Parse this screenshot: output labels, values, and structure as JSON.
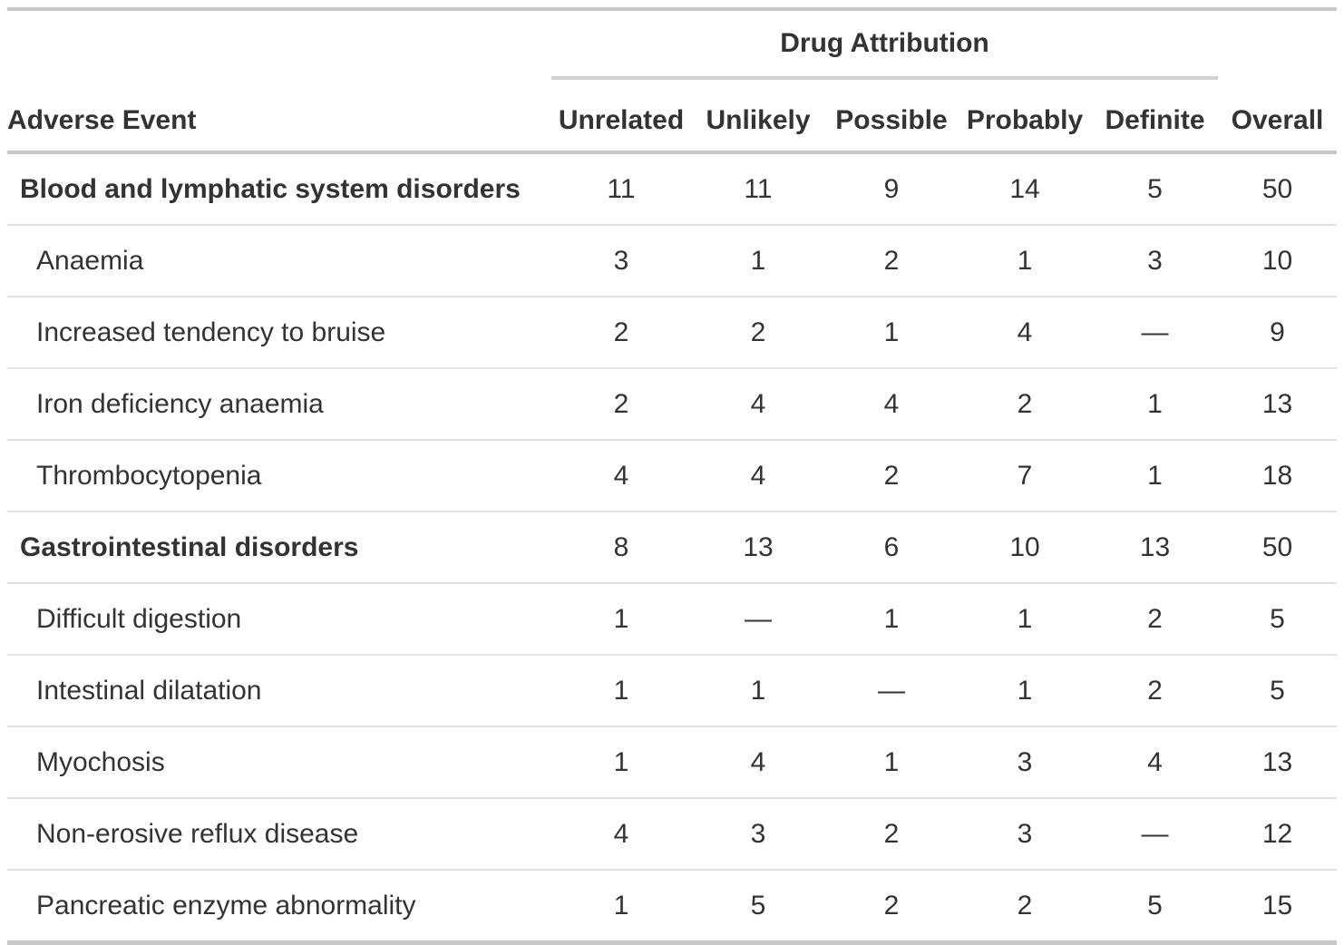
{
  "chart_data": {
    "type": "table",
    "spanner": "Drug Attribution",
    "columns": [
      "Adverse Event",
      "Unrelated",
      "Unlikely",
      "Possible",
      "Probably",
      "Definite",
      "Overall"
    ],
    "rows": [
      {
        "label": "Blood and lymphatic system disorders",
        "is_group": true,
        "values": [
          "11",
          "11",
          "9",
          "14",
          "5",
          "50"
        ]
      },
      {
        "label": "Anaemia",
        "is_group": false,
        "values": [
          "3",
          "1",
          "2",
          "1",
          "3",
          "10"
        ]
      },
      {
        "label": "Increased tendency to bruise",
        "is_group": false,
        "values": [
          "2",
          "2",
          "1",
          "4",
          "—",
          "9"
        ]
      },
      {
        "label": "Iron deficiency anaemia",
        "is_group": false,
        "values": [
          "2",
          "4",
          "4",
          "2",
          "1",
          "13"
        ]
      },
      {
        "label": "Thrombocytopenia",
        "is_group": false,
        "values": [
          "4",
          "4",
          "2",
          "7",
          "1",
          "18"
        ]
      },
      {
        "label": "Gastrointestinal disorders",
        "is_group": true,
        "values": [
          "8",
          "13",
          "6",
          "10",
          "13",
          "50"
        ]
      },
      {
        "label": "Difficult digestion",
        "is_group": false,
        "values": [
          "1",
          "—",
          "1",
          "1",
          "2",
          "5"
        ]
      },
      {
        "label": "Intestinal dilatation",
        "is_group": false,
        "values": [
          "1",
          "1",
          "—",
          "1",
          "2",
          "5"
        ]
      },
      {
        "label": "Myochosis",
        "is_group": false,
        "values": [
          "1",
          "4",
          "1",
          "3",
          "4",
          "13"
        ]
      },
      {
        "label": "Non-erosive reflux disease",
        "is_group": false,
        "values": [
          "4",
          "3",
          "2",
          "3",
          "—",
          "12"
        ]
      },
      {
        "label": "Pancreatic enzyme abnormality",
        "is_group": false,
        "values": [
          "1",
          "5",
          "2",
          "2",
          "5",
          "15"
        ]
      }
    ],
    "layout": {
      "missing_value_glyph": "—",
      "value_alignment": "center",
      "spanner_covers": [
        "Unrelated",
        "Unlikely",
        "Possible",
        "Probably",
        "Definite"
      ]
    }
  },
  "colors": {
    "text": "#333333",
    "border_heavy": "#c8c8c8",
    "border_spanner": "#d0d0d0",
    "border_light": "#e2e2e2",
    "background": "#ffffff"
  }
}
